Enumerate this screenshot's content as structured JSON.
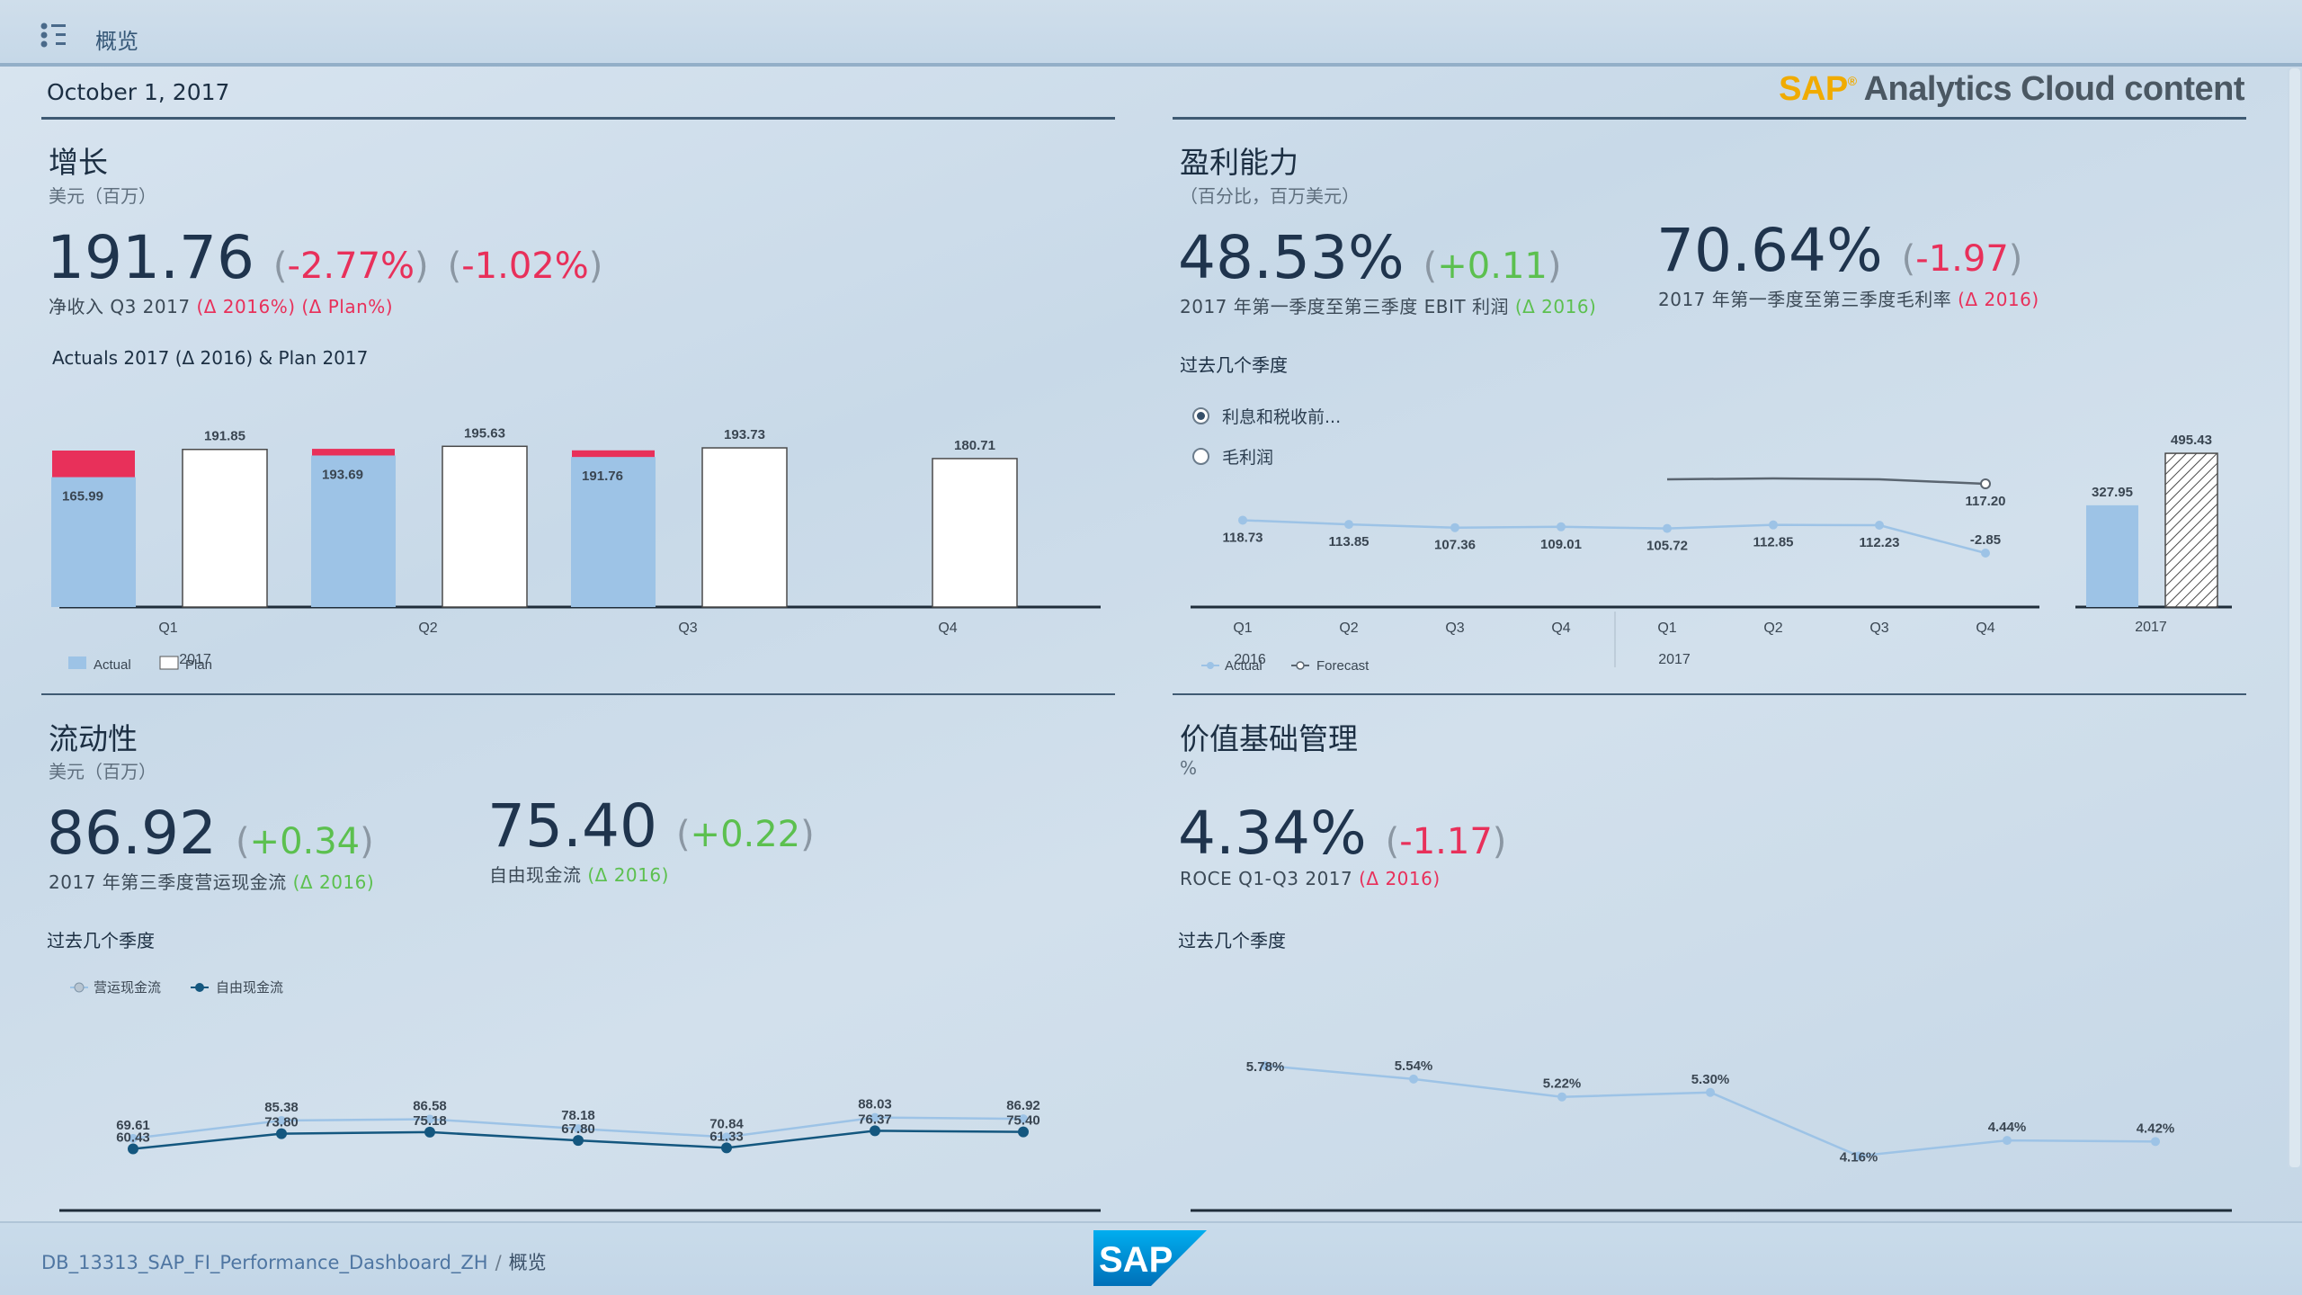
{
  "header": {
    "tab_label": "概览"
  },
  "report_date": "October 1, 2017",
  "brand": {
    "sap": "SAP",
    "reg": "®",
    "rest": "Analytics Cloud content"
  },
  "growth": {
    "title": "增长",
    "subtitle": "美元（百万）",
    "kpi_value": "191.76",
    "delta1_open": "(",
    "delta1": "-2.77%",
    "delta1_close": ")",
    "delta2_open": "(",
    "delta2": "-1.02%",
    "delta2_close": ")",
    "kpi_label": "净收入 Q3 2017",
    "kpi_label_d1": "(Δ 2016%)",
    "kpi_label_d2": "(Δ Plan%)",
    "chart_title": "Actuals 2017 (Δ 2016) & Plan 2017",
    "year_label": "2017",
    "legend": [
      "Actual",
      "Plan"
    ]
  },
  "profitability": {
    "title": "盈利能力",
    "subtitle": "（百分比，百万美元）",
    "kpi1_value": "48.53%",
    "kpi1_open": "(",
    "kpi1_delta": "+0.11",
    "kpi1_close": ")",
    "kpi1_label": "2017 年第一季度至第三季度 EBIT 利润",
    "kpi1_label_d": "(Δ 2016)",
    "kpi2_value": "70.64%",
    "kpi2_open": "(",
    "kpi2_delta": "-1.97",
    "kpi2_close": ")",
    "kpi2_label": "2017 年第一季度至第三季度毛利率",
    "kpi2_label_d": "(Δ 2016)",
    "chart_title": "过去几个季度",
    "radio_options": [
      "利息和税收前...",
      "毛利润"
    ],
    "year_2016": "2016",
    "year_2017": "2017",
    "legend": [
      "Actual",
      "Forecast"
    ],
    "bar_year": "2017"
  },
  "liquidity": {
    "title": "流动性",
    "subtitle": "美元（百万）",
    "kpi1_value": "86.92",
    "kpi1_open": "(",
    "kpi1_delta": "+0.34",
    "kpi1_close": ")",
    "kpi1_label": "2017 年第三季度营运现金流",
    "kpi1_label_d": "(Δ 2016)",
    "kpi2_value": "75.40",
    "kpi2_open": "(",
    "kpi2_delta": "+0.22",
    "kpi2_close": ")",
    "kpi2_label": "自由现金流",
    "kpi2_label_d": "(Δ 2016)",
    "chart_title": "过去几个季度",
    "legend": [
      "营运现金流",
      "自由现金流"
    ]
  },
  "vbm": {
    "title": "价值基础管理",
    "subtitle": "%",
    "kpi_value": "4.34%",
    "kpi_open": "(",
    "kpi_delta": "-1.17",
    "kpi_close": ")",
    "kpi_label": "ROCE Q1-Q3 2017",
    "kpi_label_d": "(Δ 2016)",
    "chart_title": "过去几个季度"
  },
  "footer": {
    "crumb_story": "DB_13313_SAP_FI_Performance_Dashboard_ZH",
    "crumb_sep": "/",
    "crumb_page": "概览",
    "logo_text": "SAP"
  },
  "colors": {
    "actual": "#9dc3e6",
    "neg": "#e8305a",
    "pos": "#5cc04f",
    "line_light": "#9dc3e6",
    "line_dark": "#14577f",
    "forecast": "#5a6570"
  },
  "chart_data": [
    {
      "type": "bar",
      "title": "Actuals 2017 (Δ 2016) & Plan 2017",
      "categories": [
        "Q1",
        "Q2",
        "Q3",
        "Q4"
      ],
      "series": [
        {
          "name": "Actual",
          "values": [
            165.99,
            193.69,
            191.76,
            null
          ]
        },
        {
          "name": "Δ 2016 (negative delta)",
          "values": [
            -20,
            -5,
            -5,
            null
          ]
        },
        {
          "name": "Plan",
          "values": [
            191.85,
            195.63,
            193.73,
            180.71
          ]
        }
      ],
      "value_labels": {
        "Actual": [
          "165.99",
          "193.69",
          "191.76",
          null
        ],
        "Plan": [
          "191.85",
          "195.63",
          "193.73",
          "180.71"
        ]
      },
      "ylim": [
        0,
        220
      ]
    },
    {
      "type": "line",
      "title": "过去几个季度",
      "categories": [
        "Q1",
        "Q2",
        "Q3",
        "Q4",
        "Q1",
        "Q2",
        "Q3",
        "Q4"
      ],
      "series": [
        {
          "name": "Actual",
          "values": [
            118.73,
            113.85,
            107.36,
            109.01,
            105.72,
            112.85,
            112.23,
            -2.85
          ]
        },
        {
          "name": "Forecast",
          "values": [
            null,
            null,
            null,
            null,
            125.0,
            128.0,
            127.0,
            117.2
          ]
        }
      ],
      "value_labels": [
        "118.73",
        "113.85",
        "107.36",
        "109.01",
        "105.72",
        "112.85",
        "112.23",
        "-2.85"
      ],
      "forecast_label": "117.20",
      "ylim": [
        -80,
        300
      ]
    },
    {
      "type": "bar",
      "title": "2017",
      "categories": [
        "2017"
      ],
      "series": [
        {
          "name": "Actual",
          "values": [
            327.95
          ]
        },
        {
          "name": "Forecast",
          "values": [
            495.43
          ]
        }
      ],
      "value_labels": [
        "327.95",
        "495.43"
      ],
      "ylim": [
        0,
        520
      ]
    },
    {
      "type": "line",
      "title": "过去几个季度",
      "categories": [
        "1",
        "2",
        "3",
        "4",
        "5",
        "6",
        "7"
      ],
      "series": [
        {
          "name": "营运现金流",
          "values": [
            69.61,
            85.38,
            86.58,
            78.18,
            70.84,
            88.03,
            86.92
          ]
        },
        {
          "name": "自由现金流",
          "values": [
            60.43,
            73.8,
            75.18,
            67.8,
            61.33,
            76.37,
            75.4
          ]
        }
      ],
      "value_labels": {
        "营运现金流": [
          "69.61",
          "85.38",
          "86.58",
          "78.18",
          "70.84",
          "88.03",
          "86.92"
        ],
        "自由现金流": [
          "60.43",
          "73.80",
          "75.18",
          "67.80",
          "61.33",
          "76.37",
          "75.40"
        ]
      },
      "ylim": [
        0,
        100
      ]
    },
    {
      "type": "line",
      "title": "过去几个季度",
      "categories": [
        "1",
        "2",
        "3",
        "4",
        "5",
        "6",
        "7"
      ],
      "series": [
        {
          "name": "ROCE",
          "values": [
            5.78,
            5.54,
            5.22,
            5.3,
            4.16,
            4.44,
            4.42
          ]
        }
      ],
      "value_labels": [
        "5.78%",
        "5.54%",
        "5.22%",
        "5.30%",
        "4.16%",
        "4.44%",
        "4.42%"
      ],
      "ylim": [
        0,
        7
      ]
    }
  ]
}
